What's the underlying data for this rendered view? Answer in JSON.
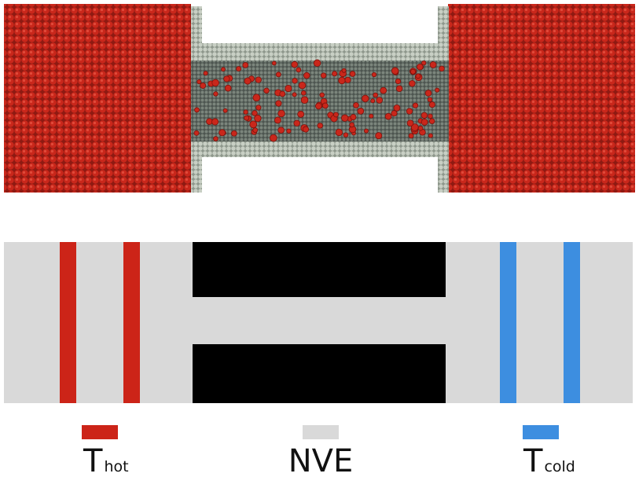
{
  "legend": [
    {
      "symbol": "T",
      "subscript": "hot"
    },
    {
      "label": "NVE"
    },
    {
      "symbol": "T",
      "subscript": "cold"
    }
  ]
}
